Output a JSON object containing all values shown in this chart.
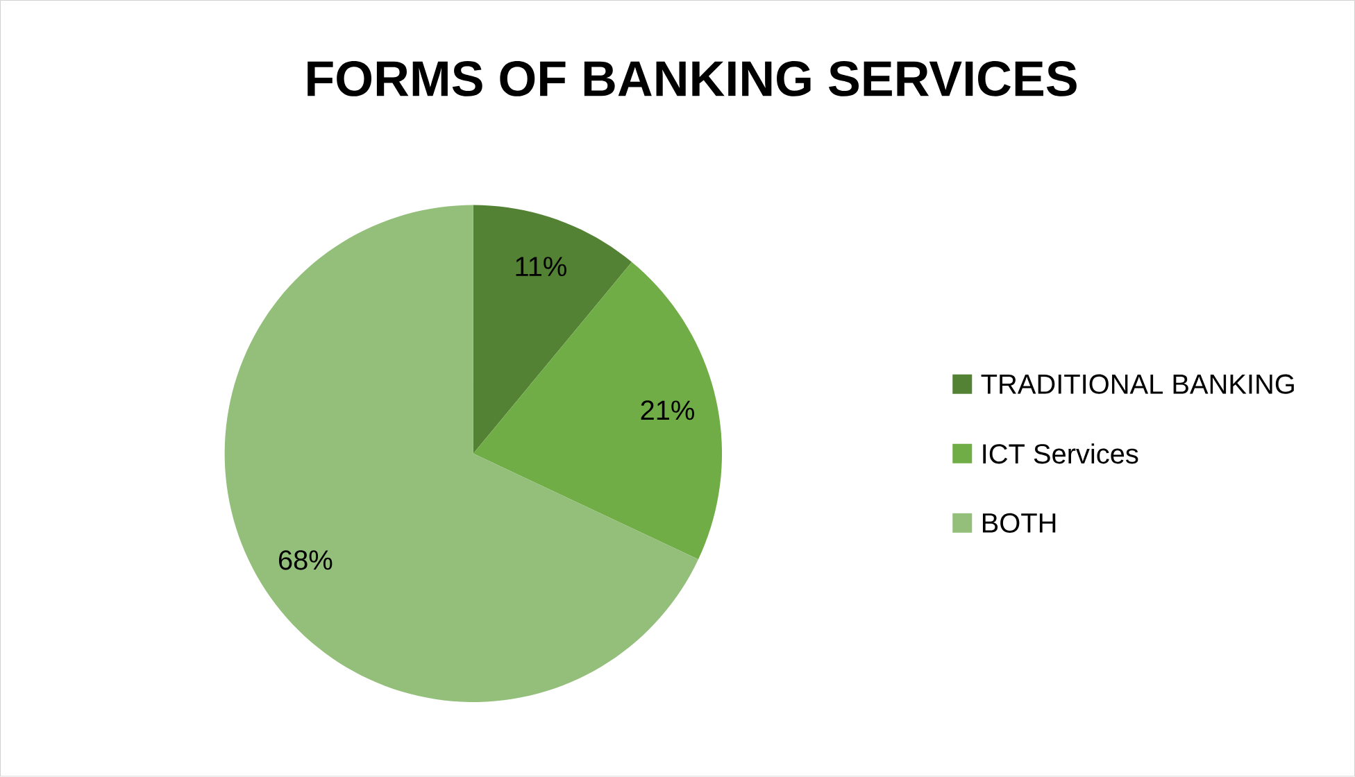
{
  "chart_data": {
    "type": "pie",
    "title": "FORMS OF BANKING SERVICES",
    "categories": [
      "TRADITIONAL BANKING",
      "ICT Services",
      "BOTH"
    ],
    "values": [
      11,
      21,
      68
    ],
    "colors": [
      "#548235",
      "#70ad47",
      "#93bf7b"
    ],
    "value_labels": [
      "11%",
      "21%",
      "68%"
    ],
    "legend": "right"
  }
}
